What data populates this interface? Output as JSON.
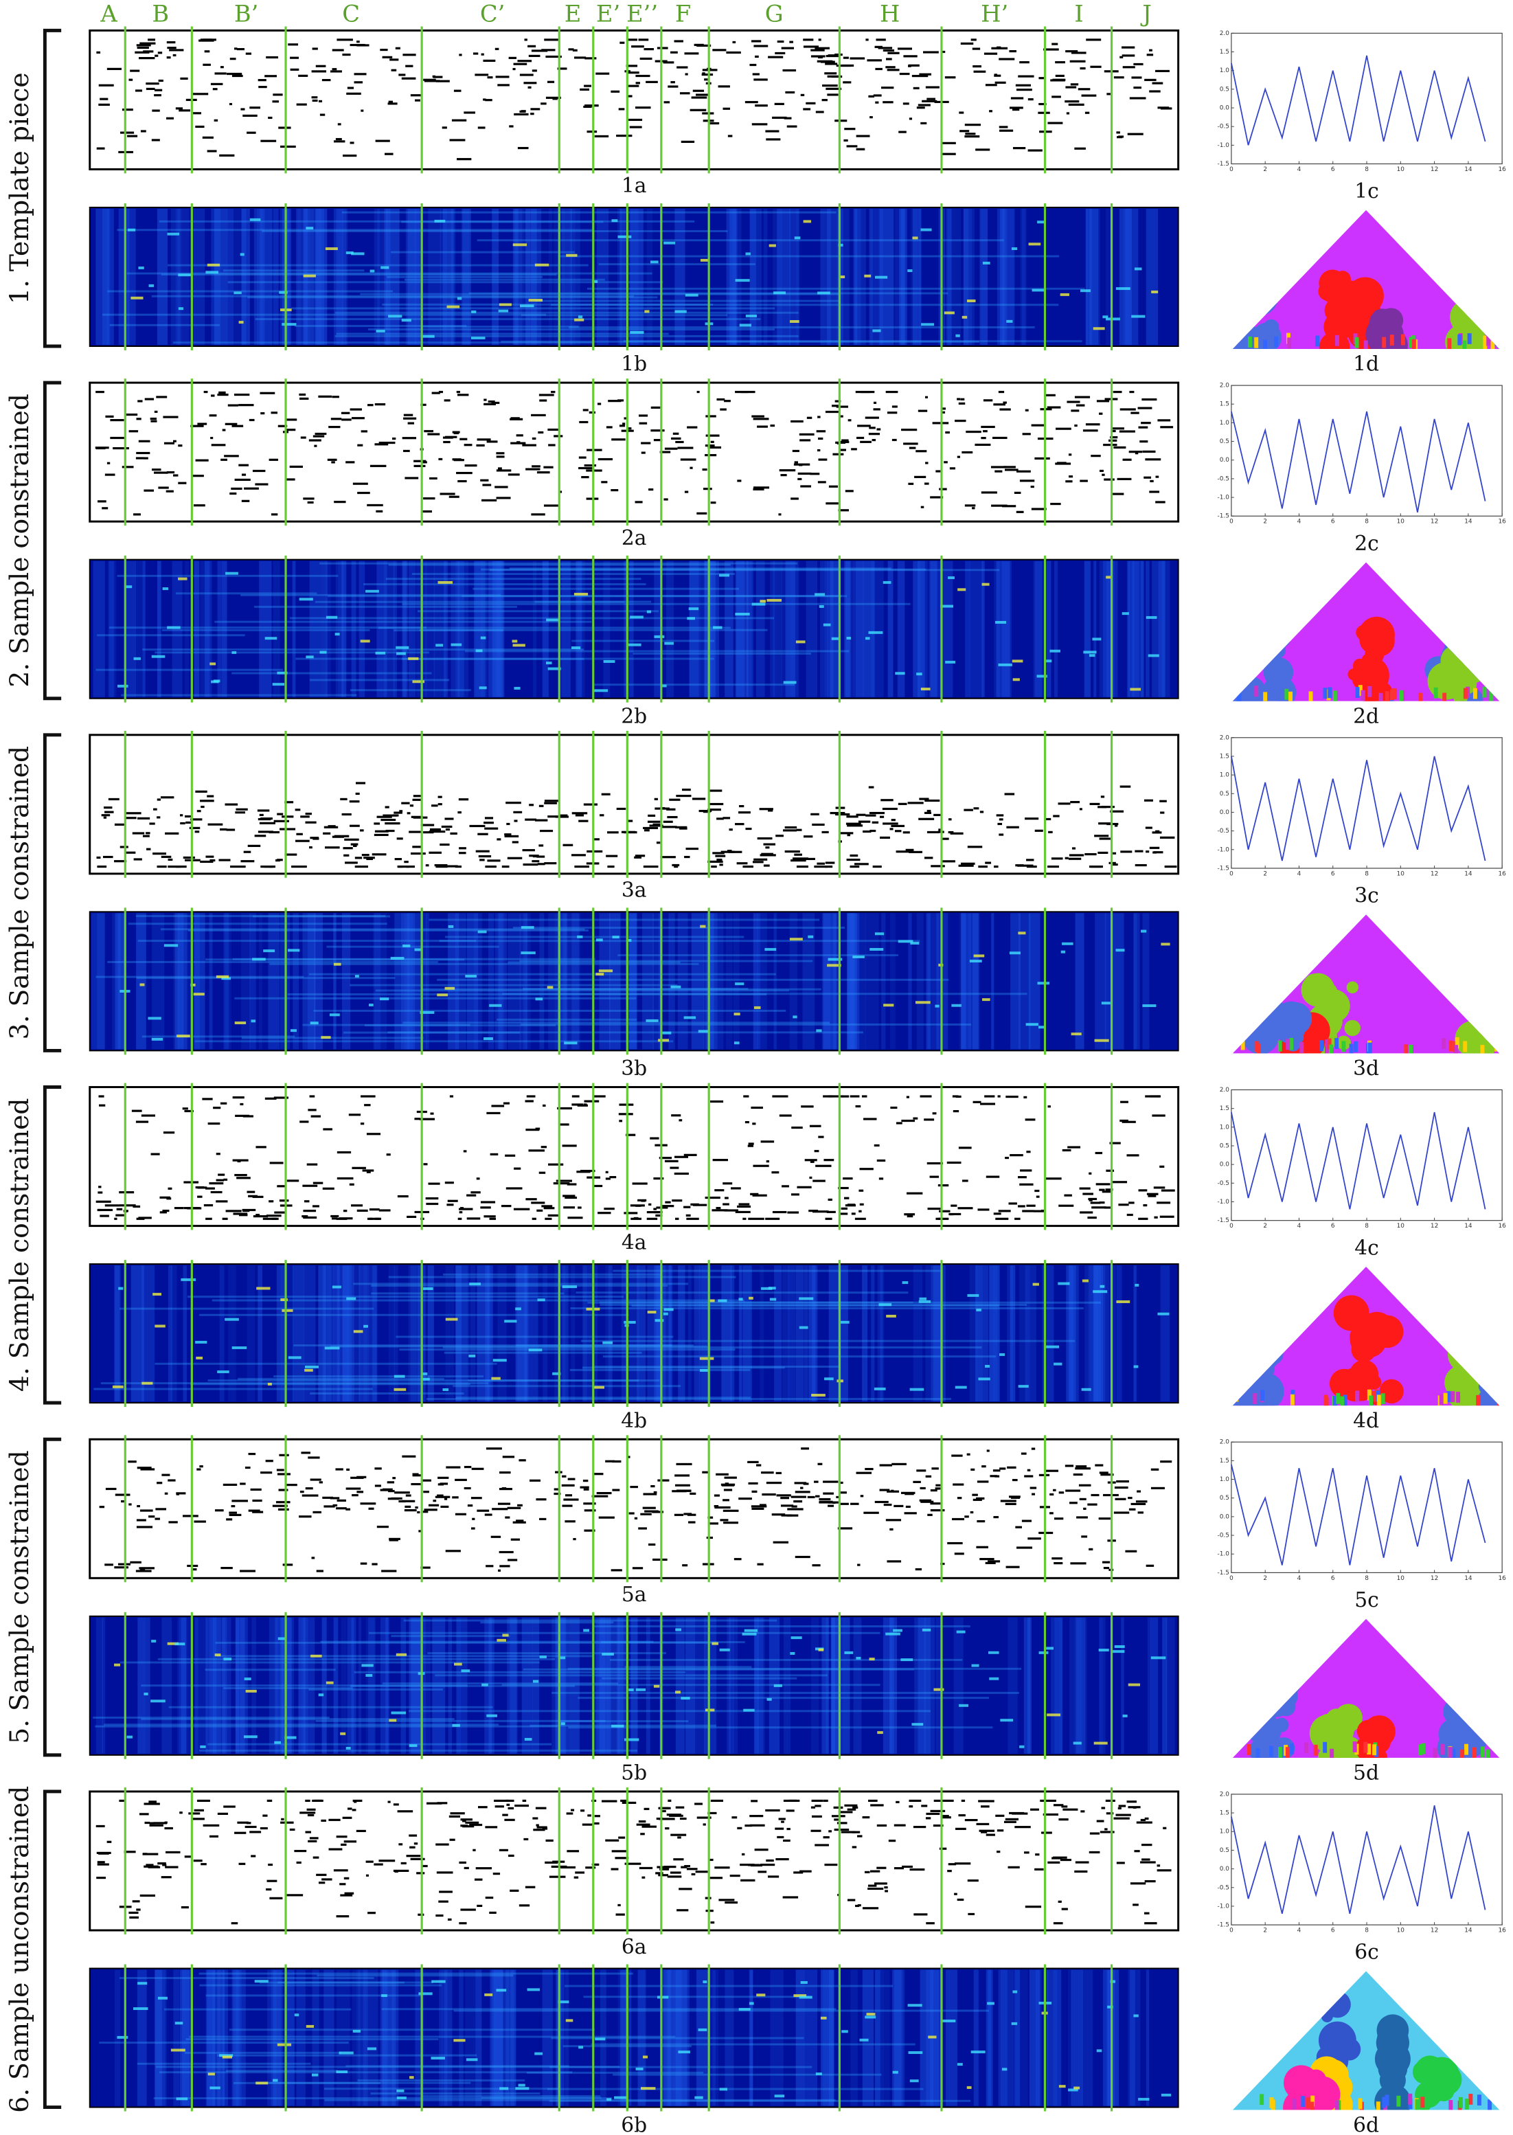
{
  "segment_labels": [
    "A",
    "B",
    "B’",
    "C",
    "C’",
    "E",
    "E’",
    "E’’",
    "F",
    "G",
    "H",
    "H’",
    "I",
    "J"
  ],
  "rows": [
    {
      "label": "1. Template piece",
      "captions": [
        "1a",
        "1b",
        "1d"
      ]
    },
    {
      "label": "2. Sample constrained",
      "captions": [
        "2a",
        "2b",
        "2d"
      ]
    },
    {
      "label": "3. Sample constrained",
      "captions": [
        "3a",
        "3b",
        "3d"
      ]
    },
    {
      "label": "4. Sample constrained",
      "captions": [
        "4a",
        "4b",
        "4d"
      ]
    },
    {
      "label": "5. Sample constrained",
      "captions": [
        "5a",
        "5b",
        "5d"
      ]
    },
    {
      "label": "6. Sample unconstrained",
      "captions": [
        "6a",
        "6b",
        "6d"
      ]
    }
  ],
  "chart_data": [
    {
      "type": "line",
      "caption": "1c",
      "color": "#3344cc",
      "x": [
        0,
        1,
        2,
        3,
        4,
        5,
        6,
        7,
        8,
        9,
        10,
        11,
        12,
        13,
        14,
        15
      ],
      "values": [
        1.2,
        -1.0,
        0.5,
        -0.8,
        1.1,
        -0.9,
        1.0,
        -0.9,
        1.4,
        -0.9,
        1.0,
        -0.9,
        1.0,
        -0.8,
        0.8,
        -0.9
      ],
      "xlim": [
        0,
        16
      ],
      "ylim": [
        -1.5,
        2.0
      ],
      "xticks": [
        0,
        2,
        4,
        6,
        8,
        10,
        12,
        14,
        16
      ],
      "yticks": [
        -1.5,
        {
          "value": -1,
          "label": "-1.0"
        },
        -0.5,
        {
          "value": 0,
          "label": "0.0"
        },
        0.5,
        {
          "value": 1,
          "label": "1.0"
        },
        1.5,
        {
          "value": 2,
          "label": "2.0"
        }
      ]
    },
    {
      "type": "line",
      "caption": "2c",
      "color": "#3344cc",
      "x": [
        0,
        1,
        2,
        3,
        4,
        5,
        6,
        7,
        8,
        9,
        10,
        11,
        12,
        13,
        14,
        15
      ],
      "values": [
        1.3,
        -0.6,
        0.8,
        -1.3,
        1.1,
        -1.2,
        1.1,
        -0.9,
        1.3,
        -1.0,
        0.9,
        -1.4,
        1.1,
        -0.8,
        1.0,
        -1.1
      ],
      "xlim": [
        0,
        16
      ],
      "ylim": [
        -1.5,
        2.0
      ],
      "xticks": [
        0,
        2,
        4,
        6,
        8,
        10,
        12,
        14,
        16
      ],
      "yticks": [
        -1.5,
        {
          "value": -1,
          "label": "-1.0"
        },
        -0.5,
        {
          "value": 0,
          "label": "0.0"
        },
        0.5,
        {
          "value": 1,
          "label": "1.0"
        },
        1.5,
        {
          "value": 2,
          "label": "2.0"
        }
      ]
    },
    {
      "type": "line",
      "caption": "3c",
      "color": "#3344cc",
      "x": [
        0,
        1,
        2,
        3,
        4,
        5,
        6,
        7,
        8,
        9,
        10,
        11,
        12,
        13,
        14,
        15
      ],
      "values": [
        1.5,
        -1.0,
        0.8,
        -1.3,
        0.9,
        -1.2,
        0.9,
        -1.0,
        1.4,
        -0.9,
        0.5,
        -1.0,
        1.5,
        -0.5,
        0.7,
        -1.3
      ],
      "xlim": [
        0,
        16
      ],
      "ylim": [
        -1.5,
        2.0
      ],
      "xticks": [
        0,
        2,
        4,
        6,
        8,
        10,
        12,
        14,
        16
      ],
      "yticks": [
        -1.5,
        {
          "value": -1,
          "label": "-1.0"
        },
        -0.5,
        {
          "value": 0,
          "label": "0.0"
        },
        0.5,
        {
          "value": 1,
          "label": "1.0"
        },
        1.5,
        {
          "value": 2,
          "label": "2.0"
        }
      ]
    },
    {
      "type": "line",
      "caption": "4c",
      "color": "#3344cc",
      "x": [
        0,
        1,
        2,
        3,
        4,
        5,
        6,
        7,
        8,
        9,
        10,
        11,
        12,
        13,
        14,
        15
      ],
      "values": [
        1.4,
        -0.9,
        0.8,
        -1.0,
        1.1,
        -1.0,
        1.0,
        -1.2,
        1.1,
        -0.9,
        0.8,
        -1.1,
        1.4,
        -1.0,
        1.0,
        -1.2
      ],
      "xlim": [
        0,
        16
      ],
      "ylim": [
        -1.5,
        2.0
      ],
      "xticks": [
        0,
        2,
        4,
        6,
        8,
        10,
        12,
        14,
        16
      ],
      "yticks": [
        -1.5,
        {
          "value": -1,
          "label": "-1.0"
        },
        -0.5,
        {
          "value": 0,
          "label": "0.0"
        },
        0.5,
        {
          "value": 1,
          "label": "1.0"
        },
        1.5,
        {
          "value": 2,
          "label": "2.0"
        }
      ]
    },
    {
      "type": "line",
      "caption": "5c",
      "color": "#3344cc",
      "x": [
        0,
        1,
        2,
        3,
        4,
        5,
        6,
        7,
        8,
        9,
        10,
        11,
        12,
        13,
        14,
        15
      ],
      "values": [
        1.4,
        -0.5,
        0.5,
        -1.3,
        1.3,
        -0.8,
        1.3,
        -1.3,
        1.1,
        -1.1,
        1.1,
        -0.8,
        1.3,
        -1.2,
        1.0,
        -0.7
      ],
      "xlim": [
        0,
        16
      ],
      "ylim": [
        -1.5,
        2.0
      ],
      "xticks": [
        0,
        2,
        4,
        6,
        8,
        10,
        12,
        14,
        16
      ],
      "yticks": [
        -1.5,
        {
          "value": -1,
          "label": "-1.0"
        },
        -0.5,
        {
          "value": 0,
          "label": "0.0"
        },
        0.5,
        {
          "value": 1,
          "label": "1.0"
        },
        1.5,
        {
          "value": 2,
          "label": "2.0"
        }
      ]
    },
    {
      "type": "line",
      "caption": "6c",
      "color": "#3344cc",
      "x": [
        0,
        1,
        2,
        3,
        4,
        5,
        6,
        7,
        8,
        9,
        10,
        11,
        12,
        13,
        14,
        15
      ],
      "values": [
        1.4,
        -0.8,
        0.7,
        -1.2,
        0.9,
        -0.7,
        1.0,
        -1.2,
        1.0,
        -0.8,
        0.6,
        -1.0,
        1.7,
        -0.8,
        1.0,
        -1.1
      ],
      "xlim": [
        0,
        16
      ],
      "ylim": [
        -1.5,
        2.0
      ],
      "xticks": [
        0,
        2,
        4,
        6,
        8,
        10,
        12,
        14,
        16
      ],
      "yticks": [
        -1.5,
        {
          "value": -1,
          "label": "-1.0"
        },
        -0.5,
        {
          "value": 0,
          "label": "0.0"
        },
        0.5,
        {
          "value": 1,
          "label": "1.0"
        },
        1.5,
        {
          "value": 2,
          "label": "2.0"
        }
      ]
    }
  ]
}
